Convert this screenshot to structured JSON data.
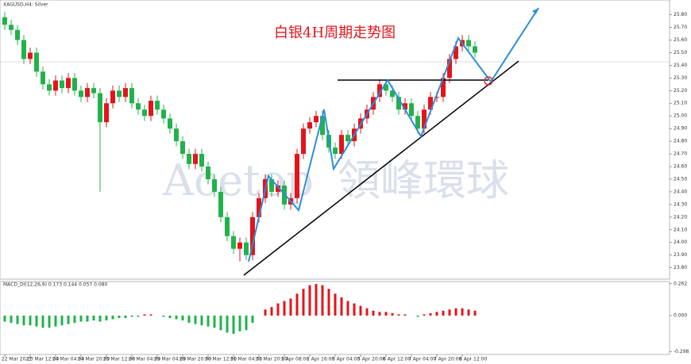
{
  "chart_data": {
    "type": "candlestick",
    "title": "白银4H周期走势图",
    "symbol_label": "XAGUSD,H4: Silver",
    "annotations": [
      "Acetop",
      "領峰環球"
    ],
    "up_color": "#e3151b",
    "down_color": "#21b24b",
    "categories": [
      "22 Mar 2021",
      null,
      null,
      null,
      "23 Mar 12:00",
      null,
      null,
      null,
      "24 Mar 04:00",
      null,
      null,
      null,
      "24 Mar 20:00",
      null,
      null,
      null,
      "25 Mar 12:00",
      null,
      null,
      null,
      "26 Mar 04:00",
      null,
      null,
      null,
      "29 Mar 04:00",
      null,
      null,
      null,
      "29 Mar 20:00",
      null,
      null,
      null,
      "30 Mar 12:00",
      null,
      null,
      null,
      "31 Mar 04:00",
      null,
      null,
      null,
      "31 Mar 20:00",
      null,
      null,
      null,
      "1 Apr 08:00",
      null,
      null,
      null,
      "1 Apr 16:00",
      null,
      null,
      null,
      "5 Apr 04:00",
      null,
      null,
      null,
      "5 Apr 20:00",
      null,
      null,
      null,
      "6 Apr 12:00",
      null,
      null,
      null,
      "7 Apr 04:00",
      null,
      null,
      null,
      "7 Apr 20:00",
      null,
      null,
      null,
      "8 Apr 12:00",
      null,
      null
    ],
    "open": [
      25.78,
      25.72,
      25.68,
      25.6,
      25.45,
      25.5,
      25.35,
      25.25,
      25.2,
      25.28,
      25.22,
      25.3,
      25.2,
      25.15,
      25.22,
      25.18,
      24.95,
      25.1,
      25.2,
      25.15,
      25.22,
      25.1,
      25.05,
      25.0,
      25.12,
      25.05,
      24.98,
      24.9,
      24.8,
      24.7,
      24.62,
      24.7,
      24.6,
      24.5,
      24.4,
      24.2,
      24.05,
      23.95,
      24.0,
      23.9,
      24.2,
      24.35,
      24.5,
      24.4,
      24.45,
      24.3,
      24.35,
      24.7,
      24.9,
      24.95,
      25.0,
      24.85,
      24.75,
      24.7,
      24.85,
      24.8,
      24.9,
      24.98,
      25.05,
      25.15,
      25.25,
      25.2,
      25.15,
      25.05,
      25.1,
      25.0,
      24.9,
      25.05,
      25.15,
      25.15,
      25.3,
      25.45,
      25.55,
      25.6,
      25.55
    ],
    "high": [
      25.82,
      25.76,
      25.72,
      25.64,
      25.54,
      25.54,
      25.39,
      25.29,
      25.32,
      25.32,
      25.34,
      25.34,
      25.24,
      25.26,
      25.26,
      25.22,
      25.14,
      25.24,
      25.24,
      25.26,
      25.26,
      25.14,
      25.09,
      25.16,
      25.16,
      25.09,
      25.02,
      24.94,
      24.84,
      24.74,
      24.74,
      24.74,
      24.64,
      24.54,
      24.44,
      24.24,
      24.09,
      24.04,
      24.04,
      24.24,
      24.39,
      24.54,
      24.54,
      24.49,
      24.49,
      24.39,
      24.74,
      24.94,
      24.99,
      25.04,
      25.04,
      24.89,
      24.79,
      24.89,
      24.89,
      24.94,
      25.02,
      25.09,
      25.19,
      25.29,
      25.29,
      25.24,
      25.19,
      25.14,
      25.14,
      25.04,
      25.09,
      25.19,
      25.19,
      25.34,
      25.49,
      25.59,
      25.64,
      25.64,
      25.59
    ],
    "low": [
      25.68,
      25.64,
      25.56,
      25.41,
      25.41,
      25.31,
      25.21,
      25.16,
      25.16,
      25.18,
      25.18,
      25.16,
      25.11,
      25.11,
      25.14,
      24.4,
      24.91,
      25.06,
      25.11,
      25.11,
      25.06,
      25.01,
      24.96,
      24.96,
      25.01,
      24.94,
      24.86,
      24.76,
      24.66,
      24.58,
      24.58,
      24.56,
      24.46,
      24.36,
      24.16,
      24.01,
      23.91,
      23.85,
      23.86,
      23.86,
      24.16,
      24.31,
      24.36,
      24.36,
      24.26,
      24.26,
      24.31,
      24.66,
      24.86,
      24.91,
      24.81,
      24.71,
      24.66,
      24.66,
      24.76,
      24.76,
      24.86,
      24.94,
      25.01,
      25.11,
      25.16,
      25.11,
      25.01,
      25.01,
      24.96,
      24.86,
      24.86,
      25.01,
      25.11,
      25.11,
      25.26,
      25.41,
      25.51,
      25.51,
      25.46
    ],
    "close": [
      25.72,
      25.68,
      25.6,
      25.45,
      25.5,
      25.35,
      25.25,
      25.2,
      25.28,
      25.22,
      25.3,
      25.2,
      25.15,
      25.22,
      25.18,
      24.95,
      25.1,
      25.2,
      25.15,
      25.22,
      25.1,
      25.05,
      25.0,
      25.12,
      25.05,
      24.98,
      24.9,
      24.8,
      24.7,
      24.62,
      24.7,
      24.6,
      24.5,
      24.4,
      24.2,
      24.05,
      23.95,
      24.0,
      23.9,
      24.2,
      24.35,
      24.5,
      24.4,
      24.45,
      24.3,
      24.35,
      24.7,
      24.9,
      24.95,
      25.0,
      24.85,
      24.75,
      24.7,
      24.85,
      24.8,
      24.9,
      24.98,
      25.05,
      25.15,
      25.25,
      25.2,
      25.15,
      25.05,
      25.1,
      25.0,
      24.9,
      25.05,
      25.15,
      25.15,
      25.3,
      25.45,
      25.55,
      25.6,
      25.55,
      25.5
    ],
    "ylim": [
      23.71,
      25.91
    ],
    "yticks": [
      {
        "value": 23.8,
        "label": "23.80"
      },
      {
        "value": 23.9,
        "label": "23.90"
      },
      {
        "value": 24.0,
        "label": "24.00"
      },
      {
        "value": 24.1,
        "label": "24.10"
      },
      {
        "value": 24.2,
        "label": "24.20"
      },
      {
        "value": 24.3,
        "label": "24.30"
      },
      {
        "value": 24.4,
        "label": "24.40"
      },
      {
        "value": 24.5,
        "label": "24.50"
      },
      {
        "value": 24.6,
        "label": "24.60"
      },
      {
        "value": 24.7,
        "label": "24.70"
      },
      {
        "value": 24.8,
        "label": "24.80"
      },
      {
        "value": 24.9,
        "label": "24.90"
      },
      {
        "value": 25.0,
        "label": "25.00"
      },
      {
        "value": 25.1,
        "label": "25.10"
      },
      {
        "value": 25.2,
        "label": "25.20"
      },
      {
        "value": 25.3,
        "label": "25.30"
      },
      {
        "value": 25.4,
        "label": "25.40"
      },
      {
        "value": 25.5,
        "label": "25.50"
      },
      {
        "value": 25.6,
        "label": "25.60"
      },
      {
        "value": 25.7,
        "label": "25.70"
      },
      {
        "value": 25.8,
        "label": "25.80"
      }
    ],
    "macd": {
      "label": "MACD_DI(12,26,9) 0.173 0.144 0.057 0.080",
      "values": [
        -0.05,
        -0.06,
        -0.07,
        -0.08,
        -0.08,
        -0.09,
        -0.1,
        -0.1,
        -0.09,
        -0.08,
        -0.07,
        -0.06,
        -0.05,
        -0.05,
        -0.04,
        -0.05,
        -0.04,
        -0.03,
        -0.02,
        -0.02,
        -0.01,
        -0.01,
        0.01,
        0.01,
        0.0,
        -0.01,
        -0.02,
        -0.03,
        -0.04,
        -0.06,
        -0.07,
        -0.08,
        -0.09,
        -0.1,
        -0.12,
        -0.14,
        -0.15,
        -0.13,
        -0.12,
        -0.06,
        0.0,
        0.05,
        0.07,
        0.1,
        0.12,
        0.14,
        0.18,
        0.22,
        0.25,
        0.26,
        0.25,
        0.22,
        0.18,
        0.15,
        0.12,
        0.1,
        0.08,
        0.06,
        0.04,
        0.03,
        0.03,
        0.02,
        0.01,
        0.01,
        0.0,
        -0.01,
        0.01,
        0.02,
        0.03,
        0.04,
        0.05,
        0.06,
        0.06,
        0.05,
        0.04
      ],
      "ylim": [
        -0.32,
        0.28
      ],
      "yticks": [
        -0.298,
        {
          "value": 0,
          "label": "0.000"
        },
        0.262
      ]
    }
  }
}
